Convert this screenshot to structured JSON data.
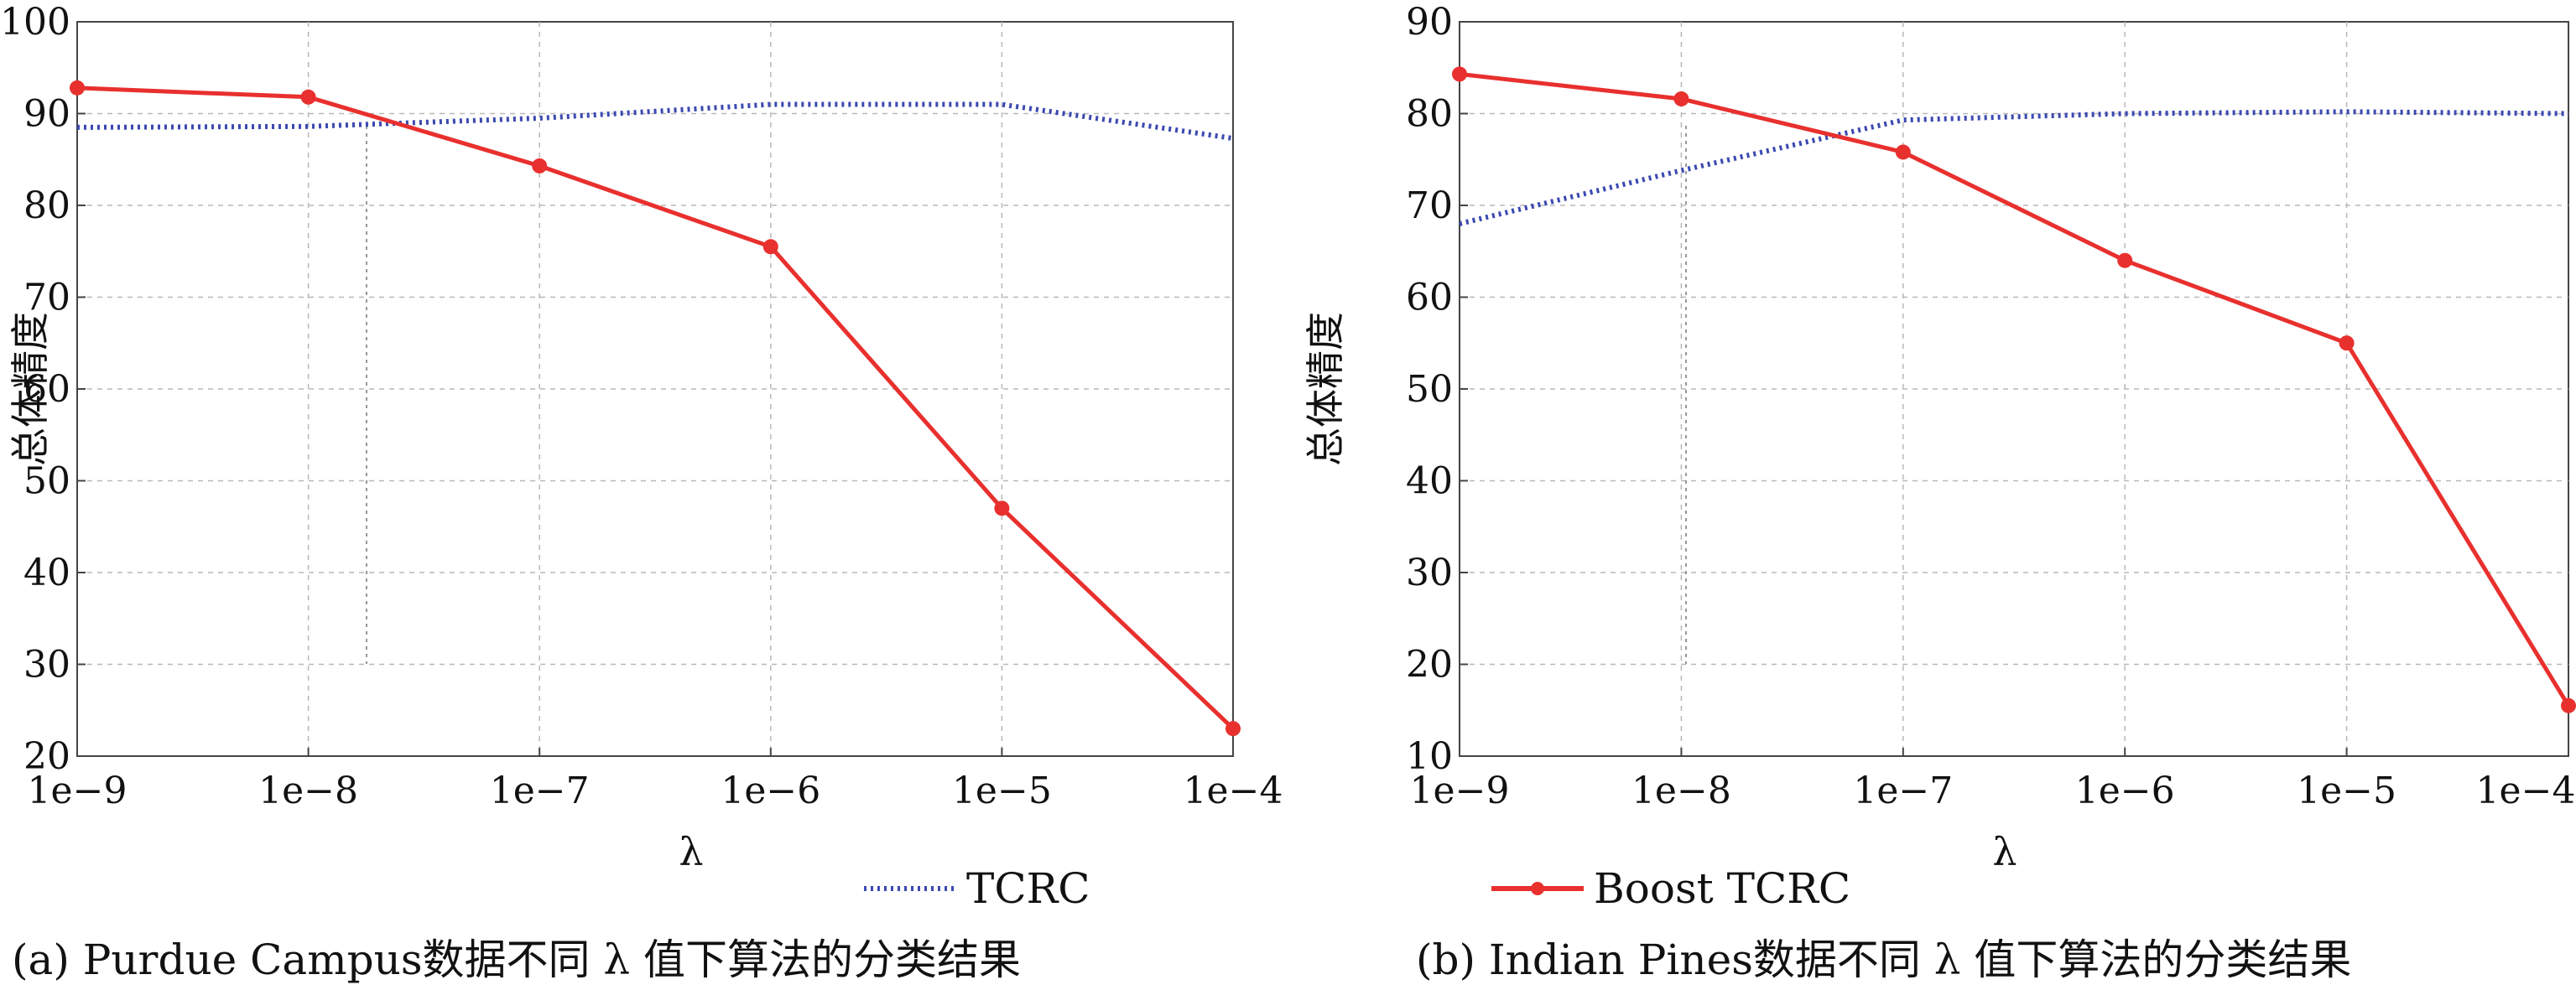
{
  "chart_data": [
    {
      "type": "line",
      "x": [
        "1e−9",
        "1e−8",
        "1e−7",
        "1e−6",
        "1e−5",
        "1e−4"
      ],
      "xlabel": "λ",
      "ylabel": "总体精度",
      "ylim": [
        20,
        100
      ],
      "yticks": [
        20,
        30,
        40,
        50,
        60,
        70,
        80,
        90,
        100
      ],
      "grid": true,
      "series": [
        {
          "name": "TCRC",
          "values": [
            88.5,
            88.6,
            89.5,
            91.0,
            91.0,
            87.3
          ],
          "color": "#3b49b0",
          "style": "dotted"
        },
        {
          "name": "Boost TCRC",
          "values": [
            92.8,
            91.8,
            84.3,
            75.5,
            47.0,
            23.0
          ],
          "color": "#e8302e",
          "style": "solid-marker"
        }
      ],
      "legend": {
        "entries": [
          "TCRC"
        ],
        "placement": "bottom-center"
      },
      "caption": "(a) Purdue Campus数据不同 λ 值下算法的分类结果"
    },
    {
      "type": "line",
      "x": [
        "1e−9",
        "1e−8",
        "1e−7",
        "1e−6",
        "1e−5",
        "1e−4"
      ],
      "xlabel": "λ",
      "ylabel": "总体精度",
      "ylim": [
        10,
        90
      ],
      "yticks": [
        10,
        20,
        30,
        40,
        50,
        60,
        70,
        80,
        90
      ],
      "grid": true,
      "series": [
        {
          "name": "TCRC",
          "values": [
            68.0,
            73.8,
            79.3,
            80.0,
            80.2,
            80.0
          ],
          "color": "#3b49b0",
          "style": "dotted"
        },
        {
          "name": "Boost TCRC",
          "values": [
            84.3,
            81.6,
            75.8,
            64.0,
            55.0,
            15.5
          ],
          "color": "#e8302e",
          "style": "solid-marker"
        }
      ],
      "legend": {
        "entries": [
          "Boost TCRC"
        ],
        "placement": "bottom-left"
      },
      "caption": "(b) Indian Pines数据不同 λ 值下算法的分类结果"
    }
  ]
}
